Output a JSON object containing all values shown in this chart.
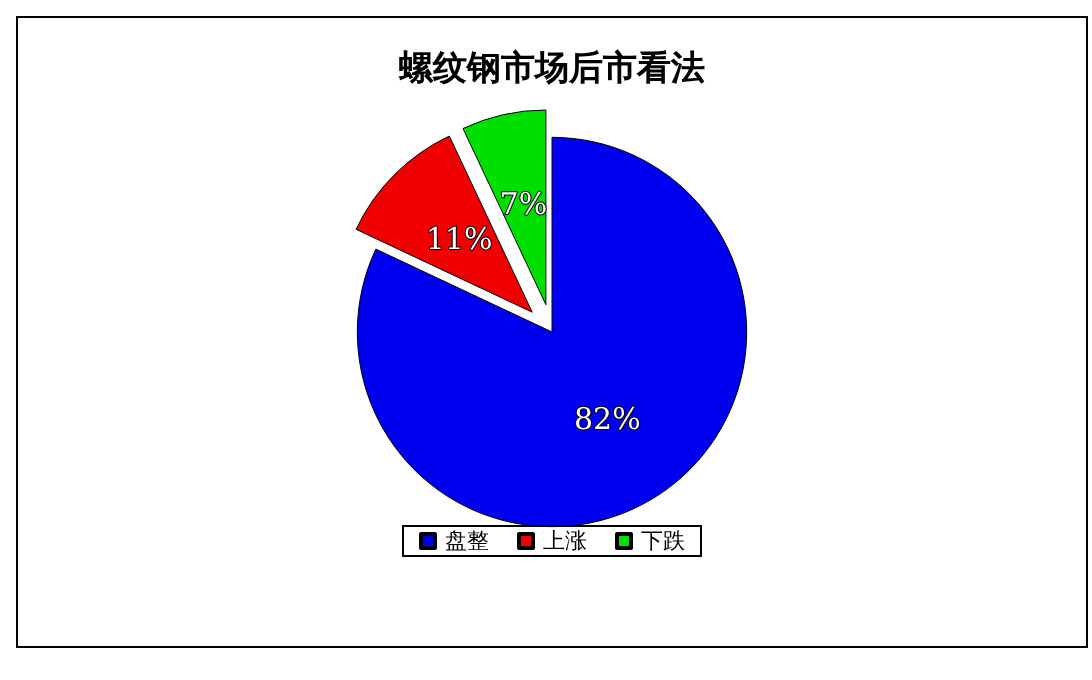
{
  "chart_data": {
    "type": "pie",
    "title": "螺纹钢市场后市看法",
    "categories": [
      "盘整",
      "上涨",
      "下跌"
    ],
    "values": [
      82,
      11,
      7
    ],
    "colors": [
      "#0000f0",
      "#f00000",
      "#00e000"
    ],
    "value_labels": [
      "82%",
      "11%",
      "7%"
    ],
    "legend": "bottom"
  }
}
